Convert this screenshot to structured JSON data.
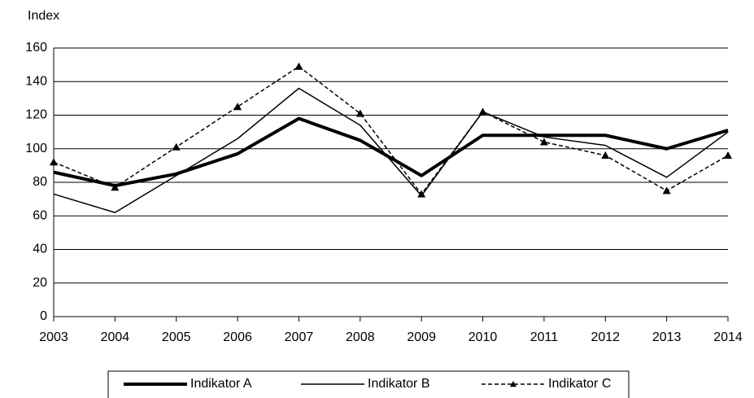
{
  "chart_data": {
    "type": "line",
    "y_label": "Index",
    "x": [
      2003,
      2004,
      2005,
      2006,
      2007,
      2008,
      2009,
      2010,
      2011,
      2012,
      2013,
      2014
    ],
    "xlim": [
      2003,
      2014
    ],
    "xticks": [
      2003,
      2004,
      2005,
      2006,
      2007,
      2008,
      2009,
      2010,
      2011,
      2012,
      2013,
      2014
    ],
    "ylim": [
      0,
      160
    ],
    "yticks": [
      0,
      20,
      40,
      60,
      80,
      100,
      120,
      140,
      160
    ],
    "grid": true,
    "legend": "bottom",
    "series": [
      {
        "name": "Indikator A",
        "color": "#000000",
        "width": 4,
        "dash": "none",
        "marker": "none",
        "values": [
          86,
          78,
          85,
          97,
          118,
          105,
          84,
          108,
          108,
          108,
          100,
          111
        ]
      },
      {
        "name": "Indikator B",
        "color": "#000000",
        "width": 1.5,
        "dash": "none",
        "marker": "none",
        "values": [
          73,
          62,
          84,
          106,
          136,
          114,
          72,
          122,
          107,
          102,
          83,
          110
        ]
      },
      {
        "name": "Indikator C",
        "color": "#000000",
        "width": 1.5,
        "dash": "5,3",
        "marker": "triangle",
        "values": [
          92,
          77,
          101,
          125,
          149,
          121,
          73,
          122,
          104,
          96,
          75,
          96
        ]
      }
    ]
  }
}
